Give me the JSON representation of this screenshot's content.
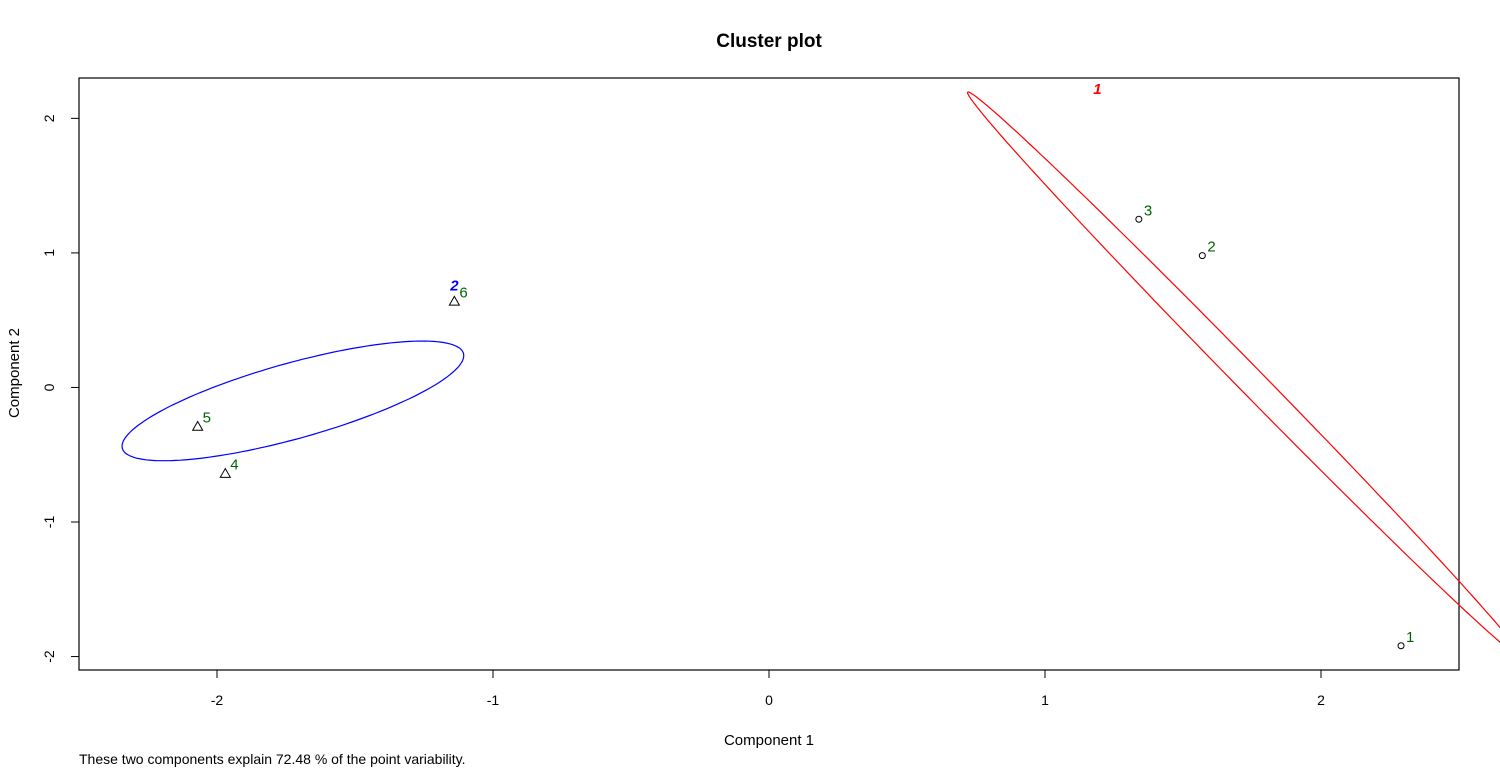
{
  "chart_data": {
    "type": "scatter",
    "title": "Cluster plot",
    "xlabel": "Component 1",
    "ylabel": "Component 2",
    "xlim": [
      -2.5,
      2.5
    ],
    "ylim": [
      -2.1,
      2.3
    ],
    "x_ticks": [
      -2,
      -1,
      0,
      1,
      2
    ],
    "y_ticks": [
      -2,
      -1,
      0,
      1,
      2
    ],
    "grid": false,
    "note": "These two components explain 72.48 % of the point variability.",
    "point_label_color": "#006400",
    "points": [
      {
        "label": "1",
        "x": 2.29,
        "y": -1.92,
        "cluster": 1
      },
      {
        "label": "2",
        "x": 1.57,
        "y": 0.98,
        "cluster": 1
      },
      {
        "label": "3",
        "x": 1.34,
        "y": 1.25,
        "cluster": 1
      },
      {
        "label": "4",
        "x": -1.97,
        "y": -0.64,
        "cluster": 2
      },
      {
        "label": "5",
        "x": -2.07,
        "y": -0.29,
        "cluster": 2
      },
      {
        "label": "6",
        "x": -1.14,
        "y": 0.64,
        "cluster": 2
      }
    ],
    "clusters": [
      {
        "label": "1",
        "color": "#ff0000",
        "marker": "circle",
        "ellipse": {
          "center": [
            1.724,
            0.093
          ],
          "semi_axes": [
            2.33,
            0.06
          ],
          "angle_deg": -64.5
        },
        "label_pos": [
          1.19,
          2.18
        ]
      },
      {
        "label": "2",
        "color": "#0000ff",
        "marker": "triangle",
        "ellipse": {
          "center": [
            -1.725,
            -0.1
          ],
          "semi_axes": [
            0.72,
            0.25
          ],
          "angle_deg": 33.0
        },
        "label_pos": [
          -1.14,
          0.72
        ]
      }
    ]
  }
}
